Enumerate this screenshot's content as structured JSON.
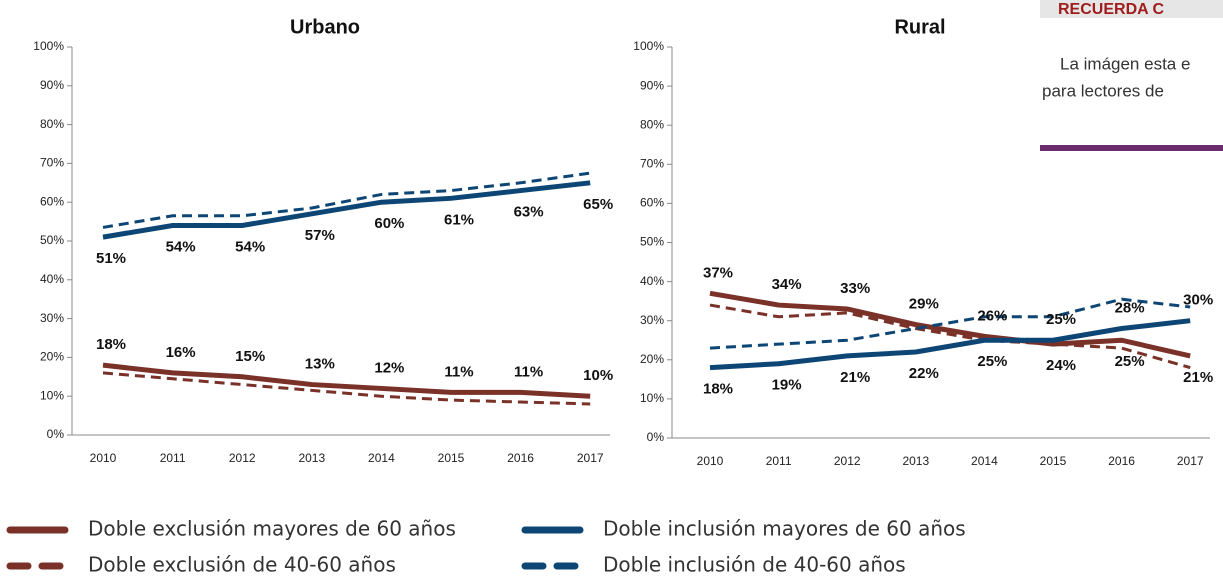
{
  "chart_data": [
    {
      "type": "line",
      "title": "Urbano",
      "categories": [
        "2010",
        "2011",
        "2012",
        "2013",
        "2014",
        "2015",
        "2016",
        "2017"
      ],
      "ylim": [
        0,
        100
      ],
      "yticks": [
        {
          "value": 0,
          "label": "0%"
        },
        {
          "value": 10,
          "label": "10%"
        },
        {
          "value": 20,
          "label": "20%"
        },
        {
          "value": 30,
          "label": "30%"
        },
        {
          "value": 40,
          "label": "40%"
        },
        {
          "value": 50,
          "label": "50%"
        },
        {
          "value": 60,
          "label": "60%"
        },
        {
          "value": 70,
          "label": "70%"
        },
        {
          "value": 80,
          "label": "80%"
        },
        {
          "value": 90,
          "label": "90%"
        },
        {
          "value": 100,
          "label": "100%"
        }
      ],
      "series": [
        {
          "name": "Doble exclusión mayores de 60 años",
          "color": "#7a3128",
          "dash": false,
          "values": [
            18,
            16,
            15,
            13,
            12,
            11,
            11,
            10
          ],
          "value_labels": [
            "18%",
            "16%",
            "15%",
            "13%",
            "12%",
            "11%",
            "11%",
            "10%"
          ]
        },
        {
          "name": "Doble exclusión de 40-60 años",
          "color": "#7a3128",
          "dash": true,
          "values": [
            16,
            14.5,
            13,
            11.5,
            10,
            9,
            8.5,
            8
          ]
        },
        {
          "name": "Doble inclusión mayores de 60 años",
          "color": "#0d4675",
          "dash": false,
          "values": [
            51,
            54,
            54,
            57,
            60,
            61,
            63,
            65
          ],
          "value_labels": [
            "51%",
            "54%",
            "54%",
            "57%",
            "60%",
            "61%",
            "63%",
            "65%"
          ]
        },
        {
          "name": "Doble inclusión de 40-60 años",
          "color": "#0d4675",
          "dash": true,
          "values": [
            53.5,
            56.5,
            56.5,
            58.5,
            62,
            63,
            65,
            67.5
          ]
        }
      ]
    },
    {
      "type": "line",
      "title": "Rural",
      "categories": [
        "2010",
        "2011",
        "2012",
        "2013",
        "2014",
        "2015",
        "2016",
        "2017"
      ],
      "ylim": [
        0,
        100
      ],
      "yticks": [
        {
          "value": 0,
          "label": "0%"
        },
        {
          "value": 10,
          "label": "10%"
        },
        {
          "value": 20,
          "label": "20%"
        },
        {
          "value": 30,
          "label": "30%"
        },
        {
          "value": 40,
          "label": "40%"
        },
        {
          "value": 50,
          "label": "50%"
        },
        {
          "value": 60,
          "label": "60%"
        },
        {
          "value": 70,
          "label": "70%"
        },
        {
          "value": 80,
          "label": "80%"
        },
        {
          "value": 90,
          "label": "90%"
        },
        {
          "value": 100,
          "label": "100%"
        }
      ],
      "series": [
        {
          "color": "#7a3128",
          "dash": false,
          "values": [
            37,
            34,
            33,
            29,
            26,
            24,
            25,
            21
          ],
          "value_labels": [
            "37%",
            "34%",
            "33%",
            "29%",
            "26%",
            "24%",
            "25%",
            "21%"
          ]
        },
        {
          "color": "#7a3128",
          "dash": true,
          "values": [
            34,
            31,
            32,
            28,
            25,
            24,
            23,
            18
          ]
        },
        {
          "color": "#0d4675",
          "dash": false,
          "values": [
            18,
            19,
            21,
            22,
            25,
            25,
            28,
            30
          ],
          "value_labels": [
            "18%",
            "19%",
            "21%",
            "22%",
            "25%",
            "25%",
            "28%",
            "30%"
          ]
        },
        {
          "color": "#0d4675",
          "dash": true,
          "values": [
            23,
            24,
            25,
            28,
            31,
            31,
            35.5,
            33.5
          ]
        }
      ]
    }
  ],
  "sidebar": {
    "header": "RECUERDA C",
    "lines": [
      "La imágen esta e",
      "para lectores de"
    ]
  }
}
